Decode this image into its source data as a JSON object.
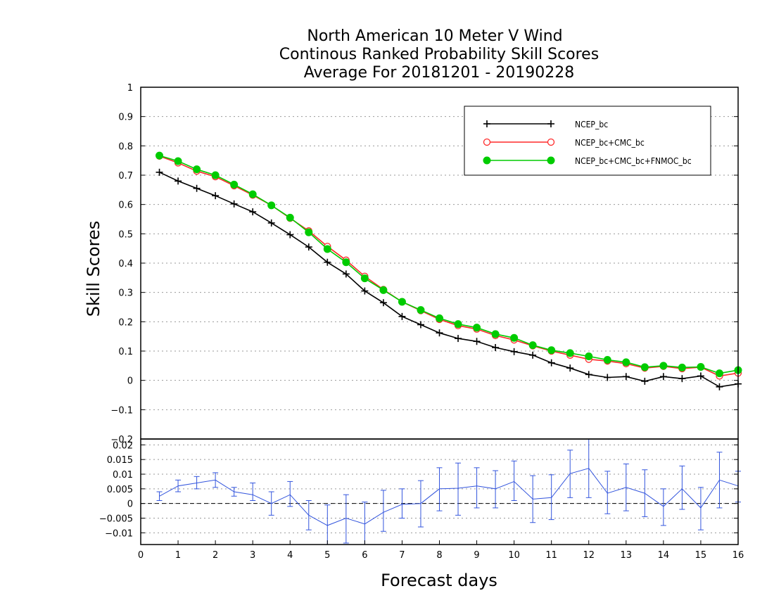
{
  "chart_data": [
    {
      "type": "line",
      "title_lines": [
        "North American 10 Meter V Wind",
        "Continous Ranked Probability Skill Scores",
        "Average For 20181201 - 20190228"
      ],
      "xlabel": "Forecast days",
      "ylabel": "Skill Scores",
      "xlim": [
        0,
        16
      ],
      "ylim": [
        -0.2,
        1
      ],
      "x_ticks": [
        "0",
        "1",
        "2",
        "3",
        "4",
        "5",
        "6",
        "7",
        "8",
        "9",
        "10",
        "11",
        "12",
        "13",
        "14",
        "15",
        "16"
      ],
      "y_ticks": [
        "−0.2",
        "−0.1",
        "0",
        "0.1",
        "0.2",
        "0.3",
        "0.4",
        "0.5",
        "0.6",
        "0.7",
        "0.8",
        "0.9",
        "1"
      ],
      "grid": "horizontal dotted",
      "legend_position": "top-right",
      "x": [
        0.5,
        1,
        1.5,
        2,
        2.5,
        3,
        3.5,
        4,
        4.5,
        5,
        5.5,
        6,
        6.5,
        7,
        7.5,
        8,
        8.5,
        9,
        9.5,
        10,
        10.5,
        11,
        11.5,
        12,
        12.5,
        13,
        13.5,
        14,
        14.5,
        15,
        15.5,
        16
      ],
      "series": [
        {
          "name": "NCEP_bc",
          "color": "#000000",
          "marker": "plus",
          "values": [
            0.71,
            0.68,
            0.655,
            0.63,
            0.602,
            0.575,
            0.537,
            0.497,
            0.455,
            0.403,
            0.363,
            0.305,
            0.265,
            0.218,
            0.19,
            0.162,
            0.143,
            0.133,
            0.112,
            0.098,
            0.086,
            0.06,
            0.042,
            0.02,
            0.01,
            0.013,
            -0.003,
            0.013,
            0.006,
            0.015,
            -0.022,
            -0.012
          ]
        },
        {
          "name": "NCEP_bc+CMC_bc",
          "color": "#ff2a2a",
          "marker": "open-circle",
          "values": [
            0.765,
            0.742,
            0.714,
            0.695,
            0.664,
            0.632,
            0.597,
            0.553,
            0.51,
            0.457,
            0.41,
            0.355,
            0.31,
            0.268,
            0.238,
            0.208,
            0.187,
            0.175,
            0.153,
            0.138,
            0.118,
            0.1,
            0.086,
            0.072,
            0.066,
            0.057,
            0.042,
            0.048,
            0.04,
            0.045,
            0.015,
            0.025
          ]
        },
        {
          "name": "NCEP_bc+CMC_bc+FNMOC_bc",
          "color": "#00cc00",
          "marker": "filled-circle",
          "values": [
            0.767,
            0.748,
            0.72,
            0.7,
            0.668,
            0.635,
            0.597,
            0.555,
            0.505,
            0.448,
            0.403,
            0.348,
            0.308,
            0.268,
            0.24,
            0.212,
            0.192,
            0.18,
            0.158,
            0.145,
            0.12,
            0.103,
            0.093,
            0.082,
            0.07,
            0.062,
            0.045,
            0.05,
            0.044,
            0.046,
            0.024,
            0.035
          ]
        }
      ]
    },
    {
      "type": "line",
      "subtype": "difference with error bars",
      "xlim": [
        0,
        16
      ],
      "ylim": [
        -0.014,
        0.022
      ],
      "y_ticks": [
        "−0.01",
        "−0.005",
        "0",
        "0.005",
        "0.01",
        "0.015",
        "0.02"
      ],
      "zero_line": "dashed",
      "series": [
        {
          "color": "#3355dd",
          "values": [
            0.0025,
            0.006,
            0.007,
            0.008,
            0.004,
            0.003,
            0,
            0.003,
            -0.004,
            -0.0075,
            -0.005,
            -0.007,
            -0.003,
            -0.0003,
            0,
            0.005,
            0.0052,
            0.006,
            0.005,
            0.0075,
            0.0015,
            0.002,
            0.0102,
            0.012,
            0.0035,
            0.0055,
            0.0035,
            -0.001,
            0.005,
            -0.0015,
            0.008,
            0.006
          ],
          "error_lower": [
            0.001,
            0.004,
            0.005,
            0.0055,
            0.0025,
            0.001,
            -0.004,
            -0.001,
            -0.009,
            -0.014,
            -0.0135,
            -0.015,
            -0.0095,
            -0.005,
            -0.008,
            -0.0025,
            -0.004,
            -0.0015,
            -0.0015,
            0.001,
            -0.0065,
            -0.0055,
            0.002,
            0.002,
            -0.0035,
            -0.0025,
            -0.0045,
            -0.0075,
            -0.002,
            -0.009,
            -0.0015,
            0.0005
          ],
          "error_upper": [
            0.004,
            0.008,
            0.0092,
            0.0105,
            0.0055,
            0.007,
            0.004,
            0.0075,
            0.001,
            -0.0005,
            0.003,
            0.0005,
            0.0045,
            0.005,
            0.0078,
            0.0122,
            0.0138,
            0.0122,
            0.0112,
            0.0145,
            0.0095,
            0.0098,
            0.0182,
            0.022,
            0.011,
            0.0135,
            0.0115,
            0.005,
            0.0128,
            0.0055,
            0.0175,
            0.011
          ]
        }
      ]
    }
  ]
}
